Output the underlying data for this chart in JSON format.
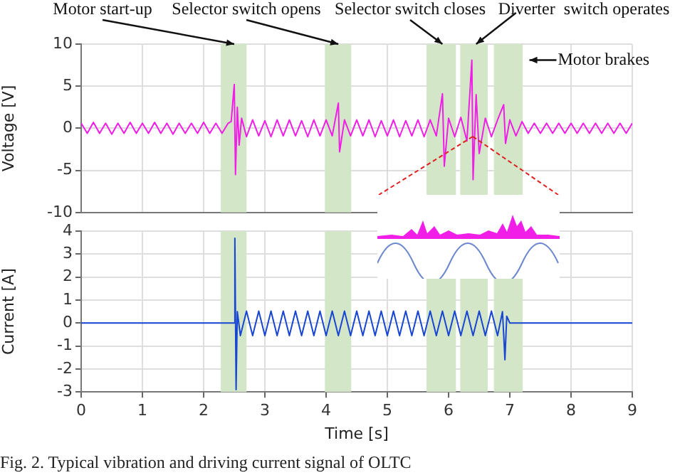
{
  "chart_data": [
    {
      "type": "line",
      "ylabel": "Voltage [V]",
      "xlim": [
        0,
        9
      ],
      "xticks": [
        0,
        1,
        2,
        3,
        4,
        5,
        6,
        7,
        8,
        9
      ],
      "ylim": [
        -10,
        10
      ],
      "yticks": [
        -10,
        -5,
        0,
        5,
        10
      ],
      "tick_labels": "y",
      "grid": true,
      "series": [
        {
          "color": "#f01ee6",
          "x": [
            0,
            0.1,
            0.2,
            0.3,
            0.4,
            0.5,
            0.6,
            0.7,
            0.8,
            0.9,
            1,
            1.1,
            1.2,
            1.3,
            1.4,
            1.5,
            1.6,
            1.7,
            1.8,
            1.9,
            2,
            2.1,
            2.2,
            2.3,
            2.4,
            2.45,
            2.5,
            2.52,
            2.55,
            2.58,
            2.62,
            2.7,
            2.8,
            2.9,
            3,
            3.1,
            3.2,
            3.3,
            3.4,
            3.5,
            3.6,
            3.7,
            3.8,
            3.9,
            4,
            4.1,
            4.2,
            4.22,
            4.3,
            4.4,
            4.5,
            4.6,
            4.7,
            4.8,
            4.9,
            5,
            5.1,
            5.2,
            5.3,
            5.4,
            5.5,
            5.6,
            5.7,
            5.8,
            5.9,
            5.93,
            6,
            6.1,
            6.2,
            6.3,
            6.38,
            6.4,
            6.45,
            6.5,
            6.6,
            6.7,
            6.8,
            6.9,
            6.93,
            7,
            7.1,
            7.2,
            7.3,
            7.4,
            7.5,
            7.6,
            7.7,
            7.8,
            7.9,
            8,
            8.1,
            8.2,
            8.3,
            8.4,
            8.5,
            8.6,
            8.7,
            8.8,
            8.9,
            9
          ],
          "values": [
            0.6,
            -0.6,
            0.7,
            -0.6,
            0.6,
            -0.7,
            0.6,
            -0.6,
            0.7,
            -0.6,
            0.6,
            -0.6,
            0.7,
            -0.6,
            0.6,
            -0.7,
            0.6,
            -0.6,
            0.6,
            -0.6,
            0.7,
            -0.6,
            0.6,
            -0.6,
            0.6,
            0.8,
            5.2,
            -5.5,
            2.5,
            -2,
            1.2,
            -1,
            1,
            -0.9,
            0.9,
            -1,
            1,
            -0.9,
            1,
            -0.9,
            0.9,
            -1,
            1,
            -0.9,
            1,
            -0.9,
            3,
            -2.8,
            1,
            -0.9,
            1,
            -0.9,
            1,
            -1,
            0.9,
            -0.9,
            1,
            -1,
            0.9,
            -0.9,
            1,
            -1,
            1,
            -0.9,
            4.1,
            -4.5,
            1.2,
            -1,
            1.3,
            -1.5,
            8.1,
            -6.1,
            4,
            -3,
            1.2,
            -1,
            1,
            2.8,
            -1.8,
            1,
            -0.9,
            0.8,
            -0.6,
            0.6,
            -0.6,
            0.6,
            -0.6,
            0.6,
            -0.6,
            0.6,
            -0.6,
            0.6,
            -0.6,
            0.6,
            -0.6,
            0.6,
            -0.6,
            0.6,
            -0.6,
            0.6
          ]
        }
      ],
      "bands": [
        {
          "axis": "x",
          "from": 2.28,
          "to": 2.7,
          "color": "#d3e6c8"
        },
        {
          "axis": "x",
          "from": 3.98,
          "to": 4.41,
          "color": "#d3e6c8"
        },
        {
          "axis": "x",
          "from": 5.64,
          "to": 6.12,
          "color": "#d3e6c8"
        },
        {
          "axis": "x",
          "from": 6.19,
          "to": 6.64,
          "color": "#d3e6c8"
        },
        {
          "axis": "x",
          "from": 6.74,
          "to": 7.21,
          "color": "#d3e6c8"
        }
      ],
      "annotations": [
        {
          "text": "Motor start-up",
          "x": 2.5,
          "y": 10
        },
        {
          "text": "Selector switch opens",
          "x": 4.2,
          "y": 10
        },
        {
          "text": "Selector switch closes",
          "x": 5.9,
          "y": 10
        },
        {
          "text": "Diverter  switch operates",
          "x": 6.45,
          "y": 10
        },
        {
          "text": "Motor brakes",
          "x": 7.32,
          "y": 8.1
        }
      ]
    },
    {
      "type": "line",
      "xlabel": "Time [s]",
      "ylabel": "Current [A]",
      "xlim": [
        0,
        9
      ],
      "xticks": [
        0,
        1,
        2,
        3,
        4,
        5,
        6,
        7,
        8,
        9
      ],
      "ylim": [
        -3,
        4
      ],
      "yticks": [
        -3,
        -2,
        -1,
        0,
        1,
        2,
        3,
        4
      ],
      "grid": true,
      "series": [
        {
          "color": "#1846d2",
          "x": [
            0,
            2.5,
            2.51,
            2.53,
            2.55,
            2.6,
            2.7,
            2.8,
            2.9,
            3,
            3.1,
            3.2,
            3.3,
            3.4,
            3.5,
            3.6,
            3.7,
            3.8,
            3.9,
            4,
            4.1,
            4.2,
            4.3,
            4.4,
            4.5,
            4.6,
            4.7,
            4.8,
            4.9,
            5,
            5.1,
            5.2,
            5.3,
            5.4,
            5.5,
            5.6,
            5.7,
            5.8,
            5.9,
            6,
            6.1,
            6.2,
            6.3,
            6.4,
            6.5,
            6.6,
            6.7,
            6.8,
            6.88,
            6.9,
            6.92,
            6.95,
            7,
            9
          ],
          "values": [
            0,
            0,
            3.7,
            -2.9,
            0.5,
            -0.55,
            0.52,
            -0.55,
            0.52,
            -0.55,
            0.52,
            -0.55,
            0.52,
            -0.55,
            0.52,
            -0.55,
            0.52,
            -0.55,
            0.52,
            -0.55,
            0.52,
            -0.55,
            0.52,
            -0.55,
            0.52,
            -0.55,
            0.52,
            -0.55,
            0.52,
            -0.55,
            0.52,
            -0.55,
            0.52,
            -0.55,
            0.52,
            -0.55,
            0.52,
            -0.55,
            0.52,
            -0.55,
            0.52,
            -0.55,
            0.52,
            -0.55,
            0.52,
            -0.55,
            0.52,
            -0.55,
            0.5,
            -0.5,
            -1.6,
            0.3,
            0,
            0
          ]
        }
      ],
      "bands": [
        {
          "axis": "x",
          "from": 2.28,
          "to": 2.7,
          "color": "#d3e6c8"
        },
        {
          "axis": "x",
          "from": 3.98,
          "to": 4.41,
          "color": "#d3e6c8"
        },
        {
          "axis": "x",
          "from": 5.64,
          "to": 6.12,
          "color": "#d3e6c8"
        },
        {
          "axis": "x",
          "from": 6.19,
          "to": 6.64,
          "color": "#d3e6c8"
        },
        {
          "axis": "x",
          "from": 6.74,
          "to": 7.21,
          "color": "#d3e6c8"
        }
      ],
      "annotations": [
        "Fig. 2. Typical vibration and driving current signal of OLTC"
      ]
    }
  ]
}
